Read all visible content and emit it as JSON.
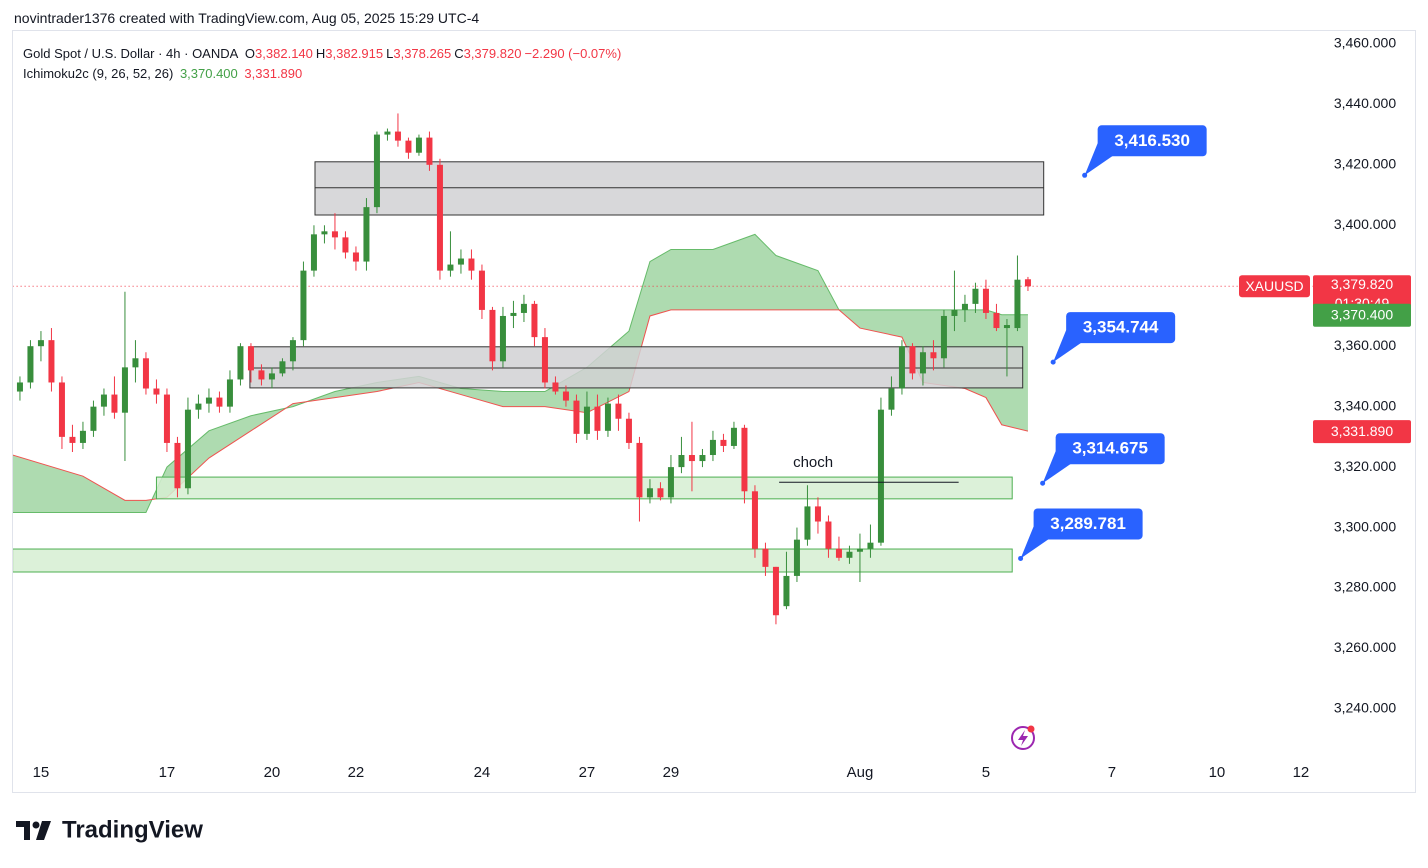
{
  "header": "novintrader1376 created with TradingView.com, Aug 05, 2025 15:29 UTC-4",
  "chart_data": {
    "type": "candlestick",
    "title": "Gold Spot / U.S. Dollar · 4h · OANDA",
    "ohlc": [
      {
        "key": "O",
        "text": "3,382.140"
      },
      {
        "key": "H",
        "text": "3,382.915"
      },
      {
        "key": "L",
        "text": "3,378.265"
      },
      {
        "key": "C",
        "text": "3,379.820"
      }
    ],
    "change": "−2.290 (−0.07%)",
    "indicator": "Ichimoku2c (9, 26, 52, 26)",
    "up_color": "#388e3c",
    "down_color": "#f23645",
    "x": [
      -2,
      -1,
      0,
      1,
      2,
      3,
      4,
      5,
      6,
      7,
      8,
      9,
      10,
      11,
      12,
      13,
      14,
      15,
      16,
      17,
      18,
      19,
      20,
      21,
      22,
      23,
      24,
      25,
      26,
      27,
      28,
      29,
      30,
      31,
      32,
      33,
      34,
      35,
      36,
      37,
      38,
      39,
      40,
      41,
      42,
      43,
      44,
      45,
      46,
      47,
      48,
      49,
      50,
      51,
      52,
      53,
      54,
      55,
      56,
      57,
      58,
      59,
      60,
      61,
      62,
      63,
      64,
      65,
      66,
      67,
      68,
      69,
      70,
      71,
      72,
      73,
      74,
      75,
      76,
      77,
      78,
      79,
      80,
      81,
      82,
      83,
      84,
      85,
      86,
      87,
      88,
      89,
      90,
      91,
      92,
      93,
      94
    ],
    "open": [
      3345,
      3348,
      3360,
      3362,
      3348,
      3330,
      3328,
      3332,
      3340,
      3344,
      3338,
      3353,
      3356,
      3346,
      3344,
      3328,
      3313,
      3339,
      3341,
      3343,
      3340,
      3349,
      3360,
      3352,
      3349,
      3351,
      3355,
      3362,
      3385,
      3397,
      3398,
      3396,
      3391,
      3388,
      3406,
      3430,
      3431,
      3428,
      3424,
      3429,
      3420,
      3385,
      3387,
      3389,
      3385,
      3372,
      3355,
      3370,
      3371,
      3374,
      3363,
      3348,
      3345,
      3342,
      3331,
      3340,
      3332,
      3341,
      3336,
      3328,
      3310,
      3313,
      3310,
      3320,
      3324,
      3322,
      3324,
      3329,
      3327,
      3333,
      3312,
      3293,
      3287,
      3274,
      3284,
      3296,
      3307,
      3302,
      3293,
      3290,
      3292,
      3293,
      3295,
      3339,
      3346,
      3360,
      3351,
      3358,
      3356,
      3370,
      3372,
      3374,
      3379,
      3371,
      3366,
      3366,
      3382.14
    ],
    "high": [
      3350,
      3362,
      3365,
      3366,
      3350,
      3334,
      3335,
      3342,
      3346,
      3350,
      3378,
      3362,
      3358,
      3349,
      3346,
      3330,
      3343,
      3344,
      3346,
      3345,
      3352,
      3361,
      3361,
      3354,
      3353,
      3356,
      3363,
      3388,
      3400,
      3400,
      3404,
      3398,
      3393,
      3409,
      3431,
      3432,
      3437,
      3429,
      3430,
      3431,
      3422,
      3398,
      3392,
      3392,
      3387,
      3373,
      3373,
      3375,
      3377,
      3375,
      3366,
      3350,
      3347,
      3344,
      3345,
      3344,
      3343,
      3344,
      3338,
      3330,
      3316,
      3315,
      3324,
      3330,
      3335,
      3326,
      3332,
      3331,
      3335,
      3334,
      3314,
      3295,
      3287,
      3292,
      3300,
      3314,
      3310,
      3304,
      3297,
      3294,
      3298,
      3301,
      3343,
      3350,
      3362,
      3361,
      3360,
      3362,
      3372,
      3385,
      3377,
      3381,
      3382,
      3374,
      3369,
      3390,
      3382.915
    ],
    "low": [
      3342,
      3346,
      3355,
      3345,
      3326,
      3325,
      3326,
      3330,
      3337,
      3336,
      3322,
      3348,
      3344,
      3341,
      3325,
      3310,
      3311,
      3336,
      3338,
      3338,
      3338,
      3347,
      3348,
      3347,
      3346,
      3350,
      3352,
      3360,
      3383,
      3394,
      3392,
      3389,
      3385,
      3385,
      3404,
      3428,
      3426,
      3422,
      3423,
      3418,
      3382,
      3383,
      3384,
      3382,
      3369,
      3352,
      3353,
      3366,
      3368,
      3360,
      3346,
      3344,
      3340,
      3328,
      3329,
      3329,
      3330,
      3332,
      3326,
      3302,
      3308,
      3309,
      3308,
      3318,
      3312,
      3320,
      3322,
      3325,
      3326,
      3308,
      3290,
      3284,
      3268,
      3273,
      3282,
      3294,
      3298,
      3290,
      3289,
      3288,
      3282,
      3290,
      3294,
      3337,
      3344,
      3349,
      3347,
      3352,
      3353,
      3365,
      3368,
      3371,
      3369,
      3365,
      3350,
      3365,
      3378.265
    ],
    "close": [
      3348,
      3360,
      3362,
      3348,
      3330,
      3328,
      3332,
      3340,
      3344,
      3338,
      3353,
      3356,
      3346,
      3344,
      3328,
      3313,
      3339,
      3341,
      3343,
      3340,
      3349,
      3360,
      3352,
      3349,
      3351,
      3355,
      3362,
      3385,
      3397,
      3398,
      3396,
      3391,
      3388,
      3406,
      3430,
      3431,
      3428,
      3424,
      3429,
      3420,
      3385,
      3387,
      3389,
      3385,
      3372,
      3355,
      3370,
      3371,
      3374,
      3363,
      3348,
      3345,
      3342,
      3331,
      3340,
      3332,
      3341,
      3336,
      3328,
      3310,
      3313,
      3310,
      3320,
      3324,
      3322,
      3324,
      3329,
      3327,
      3333,
      3312,
      3293,
      3287,
      3271,
      3284,
      3296,
      3307,
      3302,
      3293,
      3290,
      3292,
      3293,
      3295,
      3339,
      3346,
      3360,
      3351,
      3358,
      3356,
      3370,
      3372,
      3374,
      3379,
      3371,
      3366,
      3367,
      3382,
      3379.82
    ],
    "cloud": {
      "x": [
        -2.7,
        4,
        8,
        10,
        12,
        16,
        20,
        24,
        28,
        32,
        36,
        40,
        44,
        48,
        52,
        56,
        58,
        60,
        64,
        68,
        70,
        74,
        76,
        78,
        82,
        84,
        88,
        90,
        91.5,
        94
      ],
      "span_a": [
        3305,
        3305,
        3305,
        3305,
        3320,
        3332,
        3337,
        3340,
        3345,
        3348,
        3350,
        3346,
        3345,
        3345,
        3353,
        3365,
        3388,
        3392,
        3392,
        3397,
        3390,
        3385,
        3372,
        3372,
        3372,
        3372,
        3372,
        3372,
        3370.4,
        3370.4
      ],
      "span_b": [
        3324,
        3317,
        3309,
        3309,
        3310,
        3323,
        3332,
        3341,
        3343,
        3345,
        3348,
        3344,
        3340,
        3340,
        3338,
        3345,
        3370,
        3372,
        3372,
        3372,
        3372,
        3372,
        3372,
        3366,
        3363,
        3348,
        3346,
        3343,
        3334,
        3331.89
      ],
      "fill": "#4caf50",
      "line_a": "#66bb6a",
      "line_b": "#ef5350"
    },
    "zones": [
      {
        "x": [
          26.1,
          95.5
        ],
        "y": [
          3403.4,
          3421
        ],
        "mid": 3412.4,
        "color": "#d1d1d4",
        "border": "#333333"
      },
      {
        "x": [
          19.9,
          93.5
        ],
        "y": [
          3346.2,
          3359.8
        ],
        "mid": 3352.8,
        "color": "#d1d1d4",
        "border": "#333333"
      },
      {
        "x": [
          11,
          92.5
        ],
        "y": [
          3309.5,
          3316.7
        ],
        "color": "#d6efd2",
        "border": "#4caf50"
      },
      {
        "x": [
          -2.7,
          92.5
        ],
        "y": [
          3285.3,
          3292.9
        ],
        "color": "#d6efd2",
        "border": "#4caf50"
      }
    ],
    "callouts": [
      {
        "label": "3,416.530",
        "value": 3416.53,
        "x": 99.4
      },
      {
        "label": "3,354.744",
        "value": 3354.744,
        "x": 96.4
      },
      {
        "label": "3,314.675",
        "value": 3314.675,
        "x": 95.4
      },
      {
        "label": "3,289.781",
        "value": 3289.781,
        "x": 93.3
      }
    ],
    "callout_color": "#2962ff",
    "annotation": {
      "text": "choch",
      "value": 3315,
      "x": [
        70.3,
        87.4
      ]
    },
    "last_price": {
      "symbol": "XAUUSD",
      "value": 3379.82,
      "label": "3,379.820",
      "countdown": "01:30:49"
    },
    "badges": [
      {
        "value": 3370.4,
        "label": "3,370.400",
        "color": "#43a047"
      },
      {
        "value": 3331.89,
        "label": "3,331.890",
        "color": "#f23645"
      }
    ],
    "xlim": [
      -2.7,
      121.5
    ],
    "ylim": [
      3224.1,
      3464.6
    ],
    "xticks": [
      {
        "value": 0,
        "label": "15"
      },
      {
        "value": 12,
        "label": "17"
      },
      {
        "value": 22,
        "label": "20"
      },
      {
        "value": 30,
        "label": "22"
      },
      {
        "value": 42,
        "label": "24"
      },
      {
        "value": 52,
        "label": "27"
      },
      {
        "value": 60,
        "label": "29"
      },
      {
        "value": 78,
        "label": "Aug"
      },
      {
        "value": 90,
        "label": "5"
      },
      {
        "value": 102,
        "label": "7"
      },
      {
        "value": 112,
        "label": "10"
      },
      {
        "value": 120,
        "label": "12"
      }
    ],
    "yticks": [
      {
        "value": 3240,
        "label": "3,240.000"
      },
      {
        "value": 3260,
        "label": "3,260.000"
      },
      {
        "value": 3280,
        "label": "3,280.000"
      },
      {
        "value": 3300,
        "label": "3,300.000"
      },
      {
        "value": 3320,
        "label": "3,320.000"
      },
      {
        "value": 3340,
        "label": "3,340.000"
      },
      {
        "value": 3360,
        "label": "3,360.000"
      },
      {
        "value": 3380,
        "label": "3,380.000"
      },
      {
        "value": 3400,
        "label": "3,400.000"
      },
      {
        "value": 3420,
        "label": "3,420.000"
      },
      {
        "value": 3440,
        "label": "3,440.000"
      },
      {
        "value": 3460,
        "label": "3,460.000"
      }
    ],
    "grid": false
  },
  "footer": "TradingView"
}
